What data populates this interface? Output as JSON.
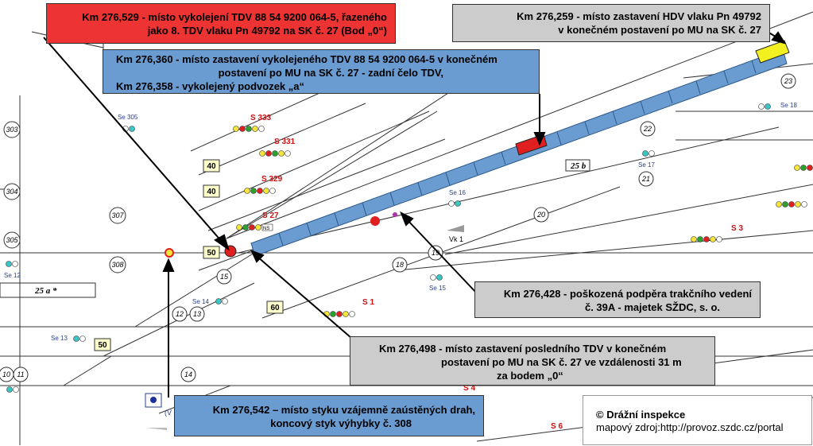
{
  "callouts": {
    "derail": {
      "line1": "Km 276,529 - místo vykolejení TDV 88 54 9200 064-5, řazeného",
      "line2": "jako 8. TDV vlaku Pn 49792 na SK č. 27 (Bod „0“)"
    },
    "hdv_stop": {
      "line1": "Km 276,259 - místo zastavení HDV vlaku Pn 49792",
      "line2": "v konečném postavení po MU na SK č. 27"
    },
    "tdv_stop": {
      "line1": "Km 276,360 - místo zastavení vykolejeného TDV 88 54 9200 064-5 v konečném",
      "line2": "postavení po MU na SK č. 27 - zadní čelo TDV,",
      "line3": "Km 276,358 - vykolejený podvozek „a“"
    },
    "support": {
      "line1": "Km 276,428 - poškozená podpěra trakčního vedení",
      "line2": "č. 39A - majetek SŽDC, s. o."
    },
    "last_tdv": {
      "line1": "Km 276,498 - místo zastavení posledního TDV v konečném",
      "line2": "postavení po MU na SK č. 27 ve vzdálenosti 31 m",
      "line3": "za bodem „0“"
    },
    "joint": {
      "line1": "Km 276,542 – místo styku vzájemně zaústěných drah,",
      "line2": "koncový styk výhybky č. 308"
    }
  },
  "credit": {
    "title": "© Drážní inspekce",
    "source": "mapový zdroj:http://provoz.szdc.cz/portal"
  },
  "map": {
    "track_labels": [
      "25 a *",
      "25 b"
    ],
    "speed_signs": [
      "40",
      "40",
      "50",
      "60",
      "50"
    ],
    "signals": [
      "S 333",
      "S 331",
      "S 329",
      "S 27",
      "S 1",
      "S 3",
      "S 4",
      "S 6"
    ],
    "shunt_signals": [
      "Se 305",
      "Se 16",
      "Se 12",
      "Se 14",
      "Se 15",
      "Se 13",
      "Se 17",
      "Se 18"
    ],
    "switches": [
      "303",
      "304",
      "305",
      "307",
      "308",
      "15",
      "18",
      "19",
      "20",
      "21",
      "22",
      "23",
      "12",
      "13",
      "14",
      "10",
      "11"
    ],
    "other": [
      "Vk 1",
      "NS",
      "(V"
    ]
  },
  "colors": {
    "red_box": "#ee3333",
    "grey_box": "#cccccc",
    "blue_box": "#6a9bd1",
    "train": "#6a9bd1",
    "hdv": "#f2f020"
  }
}
